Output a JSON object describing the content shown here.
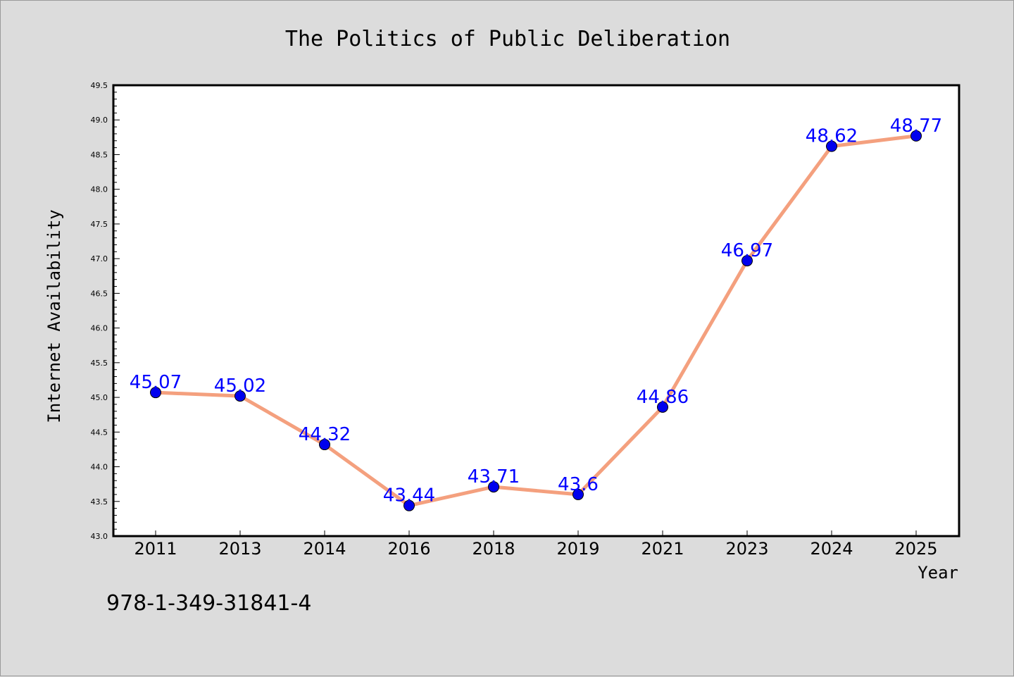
{
  "chart_data": {
    "type": "line",
    "title": "The Politics of Public Deliberation",
    "xlabel": "Year",
    "ylabel": "Internet Availability",
    "categories": [
      "2011",
      "2013",
      "2014",
      "2016",
      "2018",
      "2019",
      "2021",
      "2023",
      "2024",
      "2025"
    ],
    "series": [
      {
        "values": [
          45.07,
          45.02,
          44.32,
          43.44,
          43.71,
          43.6,
          44.86,
          46.97,
          48.62,
          48.77
        ],
        "data_labels": [
          "45.07",
          "45.02",
          "44.32",
          "43.44",
          "43.71",
          "43.6",
          "44.86",
          "46.97",
          "48.62",
          "48.77"
        ],
        "line_color": "#f4a07e",
        "marker_color": "#0000ee"
      }
    ],
    "ylim": [
      43.0,
      49.5
    ],
    "yticks": [
      "43.0",
      "43.5",
      "44.0",
      "44.5",
      "45.0",
      "45.5",
      "46.0",
      "46.5",
      "47.0",
      "47.5",
      "48.0",
      "48.5",
      "49.0",
      "49.5"
    ],
    "label_color": "#0000ff",
    "grid": false,
    "legend": "none"
  },
  "footer": {
    "isbn": "978-1-349-31841-4"
  }
}
